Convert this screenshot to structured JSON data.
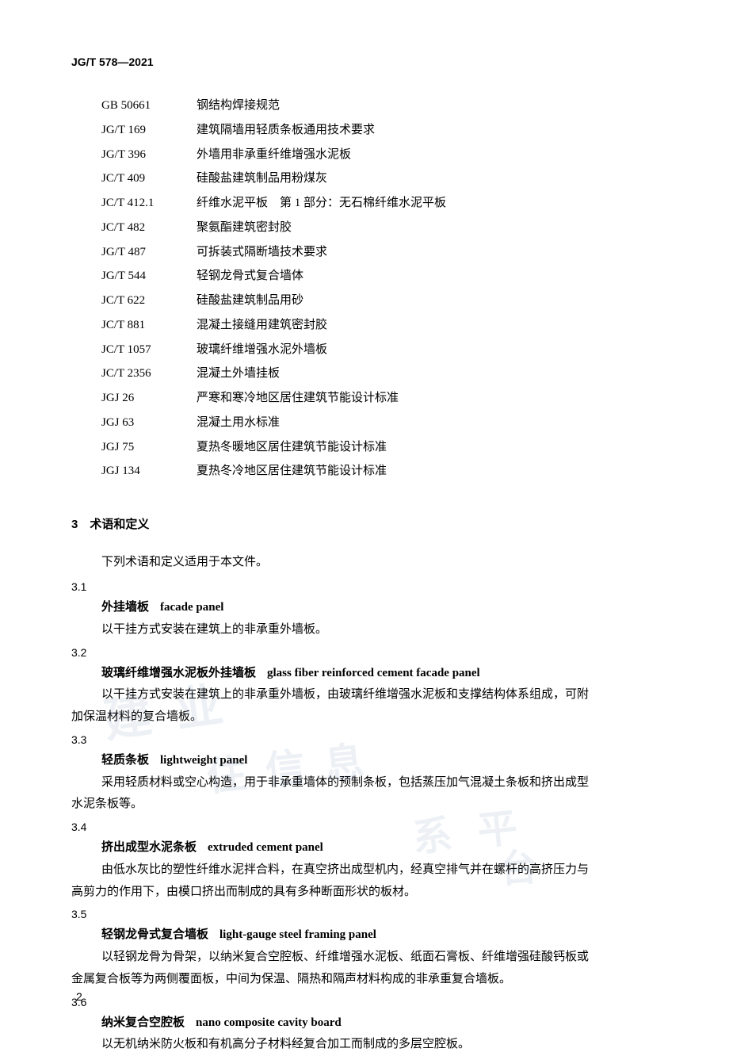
{
  "doc_header": "JG/T 578—2021",
  "standards": [
    {
      "code": "GB 50661",
      "title": "钢结构焊接规范"
    },
    {
      "code": "JG/T 169",
      "title": "建筑隔墙用轻质条板通用技术要求"
    },
    {
      "code": "JG/T 396",
      "title": "外墙用非承重纤维增强水泥板"
    },
    {
      "code": "JC/T 409",
      "title": "硅酸盐建筑制品用粉煤灰"
    },
    {
      "code": "JC/T 412.1",
      "title": "纤维水泥平板　第 1 部分：无石棉纤维水泥平板"
    },
    {
      "code": "JC/T 482",
      "title": "聚氨酯建筑密封胶"
    },
    {
      "code": "JG/T 487",
      "title": "可拆装式隔断墙技术要求"
    },
    {
      "code": "JG/T 544",
      "title": "轻钢龙骨式复合墙体"
    },
    {
      "code": "JC/T 622",
      "title": "硅酸盐建筑制品用砂"
    },
    {
      "code": "JC/T 881",
      "title": "混凝土接缝用建筑密封胶"
    },
    {
      "code": "JC/T 1057",
      "title": "玻璃纤维增强水泥外墙板"
    },
    {
      "code": "JC/T 2356",
      "title": "混凝土外墙挂板"
    },
    {
      "code": "JGJ 26",
      "title": "严寒和寒冷地区居住建筑节能设计标准"
    },
    {
      "code": "JGJ 63",
      "title": "混凝土用水标准"
    },
    {
      "code": "JGJ 75",
      "title": "夏热冬暖地区居住建筑节能设计标准"
    },
    {
      "code": "JGJ 134",
      "title": "夏热冬冷地区居住建筑节能设计标准"
    }
  ],
  "section3": {
    "heading": "3　术语和定义",
    "intro": "下列术语和定义适用于本文件。"
  },
  "terms": [
    {
      "num": "3.1",
      "zh": "外挂墙板",
      "en": "facade panel",
      "def": "以干挂方式安装在建筑上的非承重外墙板。"
    },
    {
      "num": "3.2",
      "zh": "玻璃纤维增强水泥板外挂墙板",
      "en": "glass fiber reinforced cement facade panel",
      "def": "以干挂方式安装在建筑上的非承重外墙板，由玻璃纤维增强水泥板和支撑结构体系组成，可附",
      "def_cont": "加保温材料的复合墙板。"
    },
    {
      "num": "3.3",
      "zh": "轻质条板",
      "en": "lightweight panel",
      "def": "采用轻质材料或空心构造，用于非承重墙体的预制条板，包括蒸压加气混凝土条板和挤出成型",
      "def_cont": "水泥条板等。"
    },
    {
      "num": "3.4",
      "zh": "挤出成型水泥条板",
      "en": "extruded cement panel",
      "def": "由低水灰比的塑性纤维水泥拌合料，在真空挤出成型机内，经真空排气并在螺杆的高挤压力与",
      "def_cont": "高剪力的作用下，由模口挤出而制成的具有多种断面形状的板材。"
    },
    {
      "num": "3.5",
      "zh": "轻钢龙骨式复合墙板",
      "en": "light-gauge steel framing panel",
      "def": "以轻钢龙骨为骨架，以纳米复合空腔板、纤维增强水泥板、纸面石膏板、纤维增强硅酸钙板或",
      "def_cont": "金属复合板等为两侧覆面板，中间为保温、隔热和隔声材料构成的非承重复合墙板。"
    },
    {
      "num": "3.6",
      "zh": "纳米复合空腔板",
      "en": "nano composite cavity board",
      "def": "以无机纳米防火板和有机高分子材料经复合加工而制成的多层空腔板。"
    }
  ],
  "page_number": "2",
  "watermarks": {
    "w1": "建 业",
    "w2": "住 信 息",
    "w3": "系 平",
    "w4": "台"
  }
}
